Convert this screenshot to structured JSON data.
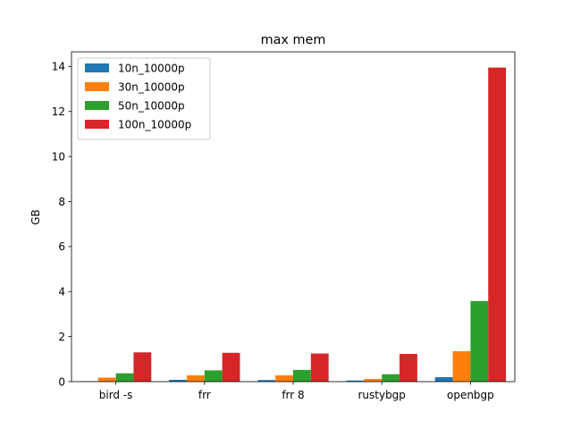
{
  "chart_data": {
    "type": "bar",
    "title": "max mem",
    "xlabel": "",
    "ylabel": "GB",
    "categories": [
      "bird -s",
      "frr",
      "frr 8",
      "rustybgp",
      "openbgp"
    ],
    "ylim": [
      0,
      14.65
    ],
    "yticks": [
      "0",
      "2",
      "4",
      "6",
      "8",
      "10",
      "12",
      "14"
    ],
    "grid": false,
    "legend_position": "top-left",
    "series": [
      {
        "name": "10n_10000p",
        "color": "#1f77b4",
        "values": [
          0.02,
          0.08,
          0.07,
          0.05,
          0.2
        ]
      },
      {
        "name": "30n_10000p",
        "color": "#ff7f0e",
        "values": [
          0.18,
          0.28,
          0.28,
          0.12,
          1.35
        ]
      },
      {
        "name": "50n_10000p",
        "color": "#2ca02c",
        "values": [
          0.37,
          0.5,
          0.52,
          0.33,
          3.58
        ]
      },
      {
        "name": "100n_10000p",
        "color": "#d62728",
        "values": [
          1.3,
          1.28,
          1.25,
          1.23,
          13.95
        ]
      }
    ]
  }
}
